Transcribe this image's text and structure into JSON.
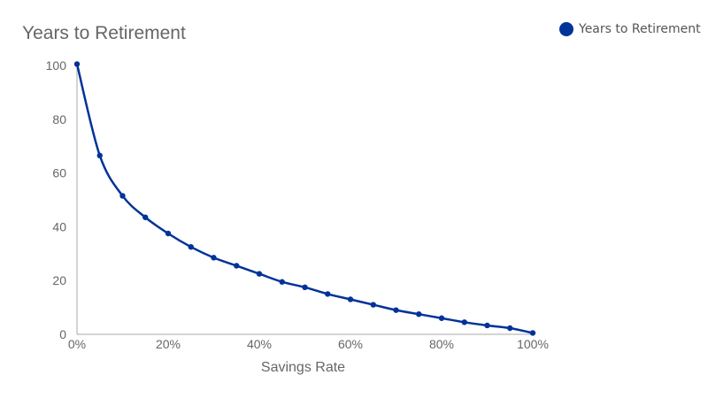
{
  "chart_data": {
    "type": "line",
    "title": "Years to Retirement",
    "xlabel": "Savings Rate",
    "ylabel": "",
    "x": [
      0,
      5,
      10,
      15,
      20,
      25,
      30,
      35,
      40,
      45,
      50,
      55,
      60,
      65,
      70,
      75,
      80,
      85,
      90,
      95,
      100
    ],
    "xlim": [
      0,
      100
    ],
    "ylim": [
      0,
      100
    ],
    "x_ticks": [
      "0%",
      "20%",
      "40%",
      "60%",
      "80%",
      "100%"
    ],
    "y_ticks": [
      "0",
      "20",
      "40",
      "60",
      "80",
      "100"
    ],
    "grid": false,
    "legend_position": "top-right",
    "series": [
      {
        "name": "Years to Retirement",
        "color": "#003399",
        "values": [
          100.5,
          66.5,
          51.5,
          43.5,
          37.5,
          32.5,
          28.5,
          25.5,
          22.5,
          19.5,
          17.5,
          15,
          13,
          11,
          9,
          7.5,
          6,
          4.5,
          3.3,
          2.3,
          0.5
        ]
      }
    ]
  }
}
